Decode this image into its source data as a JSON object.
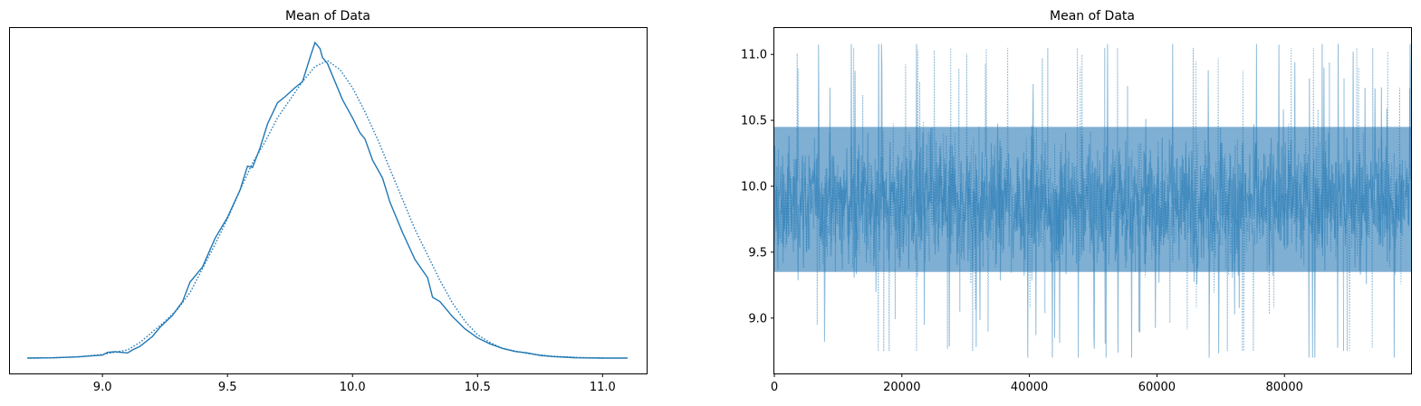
{
  "chart_data": [
    {
      "type": "line",
      "title": "Mean of Data",
      "xlabel": "",
      "ylabel": "",
      "xlim": [
        8.63,
        11.18
      ],
      "xticks": [
        "9.0",
        "9.5",
        "10.0",
        "10.5",
        "11.0"
      ],
      "y_axis_ticks": "none",
      "grid": false,
      "legend": "none",
      "color": "#1f77b4",
      "series": [
        {
          "linestyle": "solid",
          "x": [
            8.7,
            8.8,
            8.9,
            8.95,
            9.0,
            9.02,
            9.05,
            9.1,
            9.12,
            9.15,
            9.2,
            9.23,
            9.28,
            9.32,
            9.35,
            9.4,
            9.45,
            9.5,
            9.55,
            9.58,
            9.6,
            9.63,
            9.66,
            9.7,
            9.73,
            9.77,
            9.8,
            9.83,
            9.85,
            9.87,
            9.88,
            9.9,
            9.93,
            9.96,
            10.0,
            10.03,
            10.05,
            10.08,
            10.12,
            10.15,
            10.2,
            10.25,
            10.3,
            10.32,
            10.35,
            10.4,
            10.45,
            10.5,
            10.55,
            10.6,
            10.65,
            10.7,
            10.75,
            10.8,
            10.85,
            10.9,
            11.0,
            11.1
          ],
          "density": [
            0.003,
            0.004,
            0.007,
            0.01,
            0.013,
            0.022,
            0.024,
            0.02,
            0.03,
            0.042,
            0.075,
            0.105,
            0.145,
            0.19,
            0.255,
            0.305,
            0.4,
            0.47,
            0.56,
            0.64,
            0.635,
            0.7,
            0.78,
            0.85,
            0.87,
            0.9,
            0.92,
            1.0,
            1.05,
            1.03,
            1.0,
            0.98,
            0.92,
            0.86,
            0.8,
            0.75,
            0.73,
            0.66,
            0.6,
            0.52,
            0.42,
            0.33,
            0.27,
            0.205,
            0.19,
            0.14,
            0.1,
            0.07,
            0.05,
            0.035,
            0.025,
            0.02,
            0.012,
            0.008,
            0.006,
            0.004,
            0.003,
            0.003
          ]
        },
        {
          "linestyle": "dotted",
          "x": [
            8.7,
            8.8,
            8.9,
            9.0,
            9.1,
            9.15,
            9.2,
            9.25,
            9.3,
            9.35,
            9.4,
            9.45,
            9.5,
            9.55,
            9.6,
            9.65,
            9.7,
            9.75,
            9.8,
            9.85,
            9.9,
            9.95,
            10.0,
            10.05,
            10.1,
            10.15,
            10.2,
            10.25,
            10.3,
            10.35,
            10.4,
            10.45,
            10.5,
            10.55,
            10.6,
            10.7,
            10.8,
            10.9,
            11.0
          ],
          "density": [
            0.003,
            0.004,
            0.007,
            0.015,
            0.03,
            0.055,
            0.09,
            0.125,
            0.165,
            0.22,
            0.3,
            0.38,
            0.465,
            0.56,
            0.65,
            0.72,
            0.8,
            0.86,
            0.92,
            0.97,
            0.99,
            0.96,
            0.9,
            0.82,
            0.73,
            0.63,
            0.53,
            0.43,
            0.345,
            0.26,
            0.185,
            0.125,
            0.08,
            0.055,
            0.035,
            0.018,
            0.009,
            0.005,
            0.003
          ]
        }
      ]
    },
    {
      "type": "line",
      "title": "Mean of Data",
      "xlabel": "",
      "ylabel": "",
      "xlim": [
        0,
        99999
      ],
      "ylim": [
        8.58,
        11.2
      ],
      "xticks": [
        "0",
        "20000",
        "40000",
        "60000",
        "80000"
      ],
      "yticks": [
        "9.0",
        "9.5",
        "10.0",
        "10.5",
        "11.0"
      ],
      "grid": false,
      "legend": "none",
      "color": "#1f77b4",
      "alpha": 0.5,
      "series": [
        {
          "linestyle": "solid",
          "samples": 100000,
          "center": 9.88,
          "core_band": [
            9.35,
            10.45
          ],
          "range": [
            8.7,
            11.08
          ]
        },
        {
          "linestyle": "dotted",
          "samples": 100000,
          "center": 9.88,
          "core_band": [
            9.35,
            10.45
          ],
          "range": [
            8.75,
            11.05
          ]
        }
      ]
    }
  ]
}
